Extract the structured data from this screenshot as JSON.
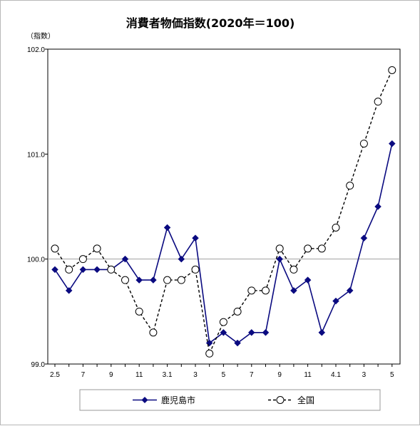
{
  "chart_data": {
    "type": "line",
    "title": "消費者物価指数(2020年＝100)",
    "ylabel": "（指数）",
    "ylim": [
      99.0,
      102.0
    ],
    "yticks": [
      "99.0",
      "100.0",
      "101.0",
      "102.0"
    ],
    "reference_line": 100.0,
    "x_tick_labels": [
      "2.5",
      "",
      "7",
      "",
      "9",
      "",
      "11",
      "",
      "3.1",
      "",
      "3",
      "",
      "5",
      "",
      "7",
      "",
      "9",
      "",
      "11",
      "",
      "4.1",
      "",
      "3",
      "",
      "5"
    ],
    "series": [
      {
        "name": "鹿児島市",
        "color": "#0a0a80",
        "marker": "diamond",
        "line": "solid",
        "values": [
          99.9,
          99.7,
          99.9,
          99.9,
          99.9,
          100.0,
          99.8,
          99.8,
          100.3,
          100.0,
          100.2,
          99.2,
          99.3,
          99.2,
          99.3,
          99.3,
          100.0,
          99.7,
          99.8,
          99.3,
          99.6,
          99.7,
          100.2,
          100.5,
          101.1
        ]
      },
      {
        "name": "全国",
        "color": "#000000",
        "marker": "open-circle",
        "line": "dashed",
        "values": [
          100.1,
          99.9,
          100.0,
          100.1,
          99.9,
          99.8,
          99.5,
          99.3,
          99.8,
          99.8,
          99.9,
          99.1,
          99.4,
          99.5,
          99.7,
          99.7,
          100.1,
          99.9,
          100.1,
          100.1,
          100.3,
          100.7,
          101.1,
          101.5,
          101.8
        ]
      }
    ],
    "legend_position": "bottom"
  }
}
